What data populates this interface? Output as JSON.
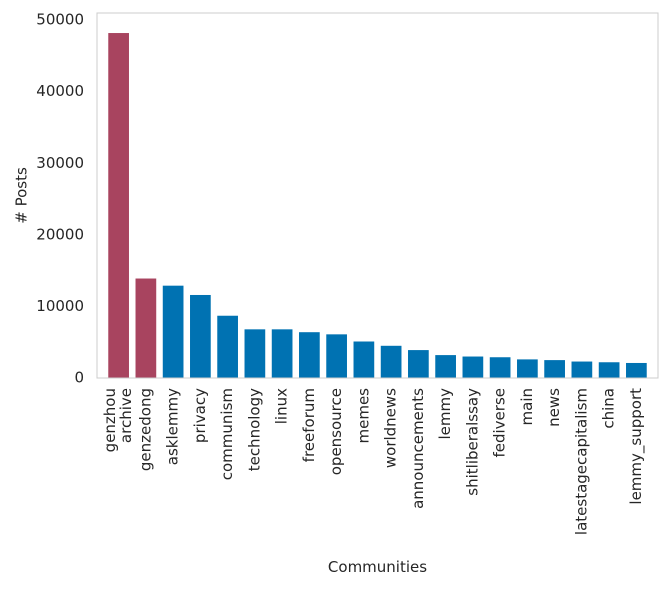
{
  "chart_data": {
    "type": "bar",
    "title": "",
    "xlabel": "Communities",
    "ylabel": "# Posts",
    "ylim": [
      0,
      51000
    ],
    "yticks": [
      0,
      10000,
      20000,
      30000,
      40000,
      50000
    ],
    "grid": false,
    "categories": [
      "genzhou archive",
      "genzedong",
      "asklemmy",
      "privacy",
      "communism",
      "technology",
      "linux",
      "freeforum",
      "opensource",
      "memes",
      "worldnews",
      "announcements",
      "lemmy",
      "shitliberalssay",
      "fediverse",
      "main",
      "news",
      "latestagecapitalism",
      "china",
      "lemmy_support"
    ],
    "category_lines": [
      [
        "genzhou",
        "archive"
      ],
      [
        "genzedong"
      ],
      [
        "asklemmy"
      ],
      [
        "privacy"
      ],
      [
        "communism"
      ],
      [
        "technology"
      ],
      [
        "linux"
      ],
      [
        "freeforum"
      ],
      [
        "opensource"
      ],
      [
        "memes"
      ],
      [
        "worldnews"
      ],
      [
        "announcements"
      ],
      [
        "lemmy"
      ],
      [
        "shitliberalssay"
      ],
      [
        "fediverse"
      ],
      [
        "main"
      ],
      [
        "news"
      ],
      [
        "latestagecapitalism"
      ],
      [
        "china"
      ],
      [
        "lemmy_support"
      ]
    ],
    "values": [
      48200,
      13900,
      12900,
      11600,
      8700,
      6800,
      6800,
      6400,
      6100,
      5100,
      4500,
      3900,
      3200,
      3000,
      2900,
      2600,
      2500,
      2300,
      2200,
      2100
    ],
    "highlighted": [
      true,
      true,
      false,
      false,
      false,
      false,
      false,
      false,
      false,
      false,
      false,
      false,
      false,
      false,
      false,
      false,
      false,
      false,
      false,
      false
    ],
    "colors": {
      "highlight": "#a8445f",
      "default": "#0072b2",
      "axes": "#cccccc",
      "text": "#262626"
    }
  }
}
